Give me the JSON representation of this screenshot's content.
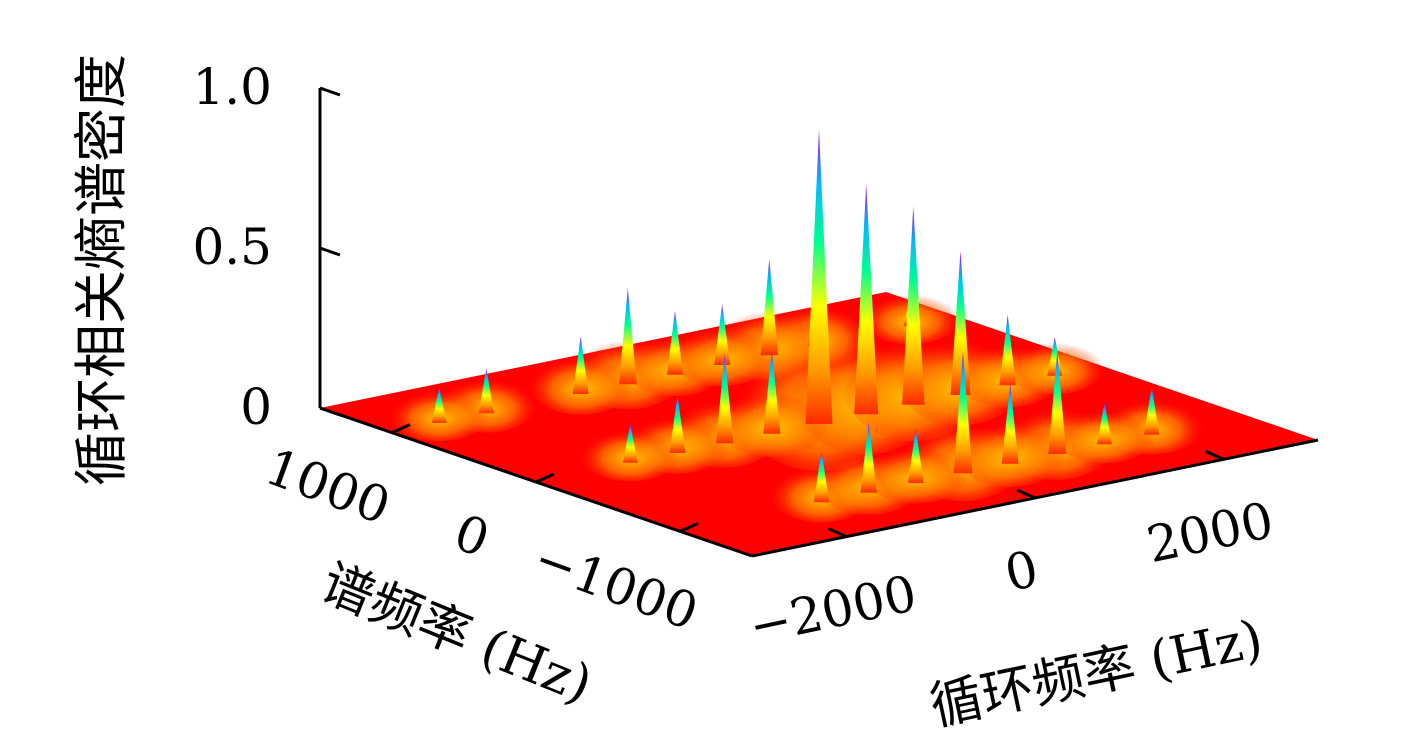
{
  "chart_data": {
    "type": "surface3d",
    "title": "",
    "zlabel": "循环相关熵谱密度",
    "xlabel": "循环频率 (Hz)",
    "ylabel": "谱频率 (Hz)",
    "zlim": [
      0,
      1.0
    ],
    "z_ticks": [
      "0",
      "0.5",
      "1.0"
    ],
    "z_tick_values": [
      0,
      0.5,
      1.0
    ],
    "x_ticks": [
      "−2000",
      "0",
      "2000"
    ],
    "x_tick_values": [
      -2000,
      0,
      2000
    ],
    "xlim": [
      -3000,
      3000
    ],
    "y_ticks": [
      "1000",
      "0",
      "−1000"
    ],
    "y_tick_values": [
      1000,
      0,
      -1000
    ],
    "ylim": [
      -1500,
      1500
    ],
    "colormap": [
      "#ff0000",
      "#ff8c00",
      "#ffff00",
      "#00ff80",
      "#00c0ff",
      "#a000ff"
    ],
    "baseline_color": "#ff0000",
    "peaks": [
      {
        "x": 0,
        "y": 0,
        "z": 0.92
      },
      {
        "x": 500,
        "y": 0,
        "z": 0.72
      },
      {
        "x": 0,
        "y": -1000,
        "z": 0.38
      },
      {
        "x": -500,
        "y": 1000,
        "z": 0.3
      },
      {
        "x": 1000,
        "y": 0,
        "z": 0.62
      },
      {
        "x": 1500,
        "y": 0,
        "z": 0.45
      },
      {
        "x": 1000,
        "y": -1000,
        "z": 0.32
      },
      {
        "x": -1000,
        "y": 0,
        "z": 0.28
      },
      {
        "x": 2000,
        "y": 0,
        "z": 0.22
      },
      {
        "x": -1500,
        "y": 0,
        "z": 0.18
      },
      {
        "x": 500,
        "y": -1000,
        "z": 0.25
      },
      {
        "x": -500,
        "y": 0,
        "z": 0.26
      },
      {
        "x": 2000,
        "y": -1000,
        "z": 0.15
      },
      {
        "x": -2000,
        "y": 1000,
        "z": 0.14
      },
      {
        "x": 1500,
        "y": 1000,
        "z": 0.22
      },
      {
        "x": 0,
        "y": 1000,
        "z": 0.2
      },
      {
        "x": 1000,
        "y": 1000,
        "z": 0.3
      },
      {
        "x": -1000,
        "y": 1000,
        "z": 0.18
      },
      {
        "x": -1500,
        "y": -1000,
        "z": 0.16
      },
      {
        "x": -1000,
        "y": -1000,
        "z": 0.22
      },
      {
        "x": 2500,
        "y": 0,
        "z": 0.12
      },
      {
        "x": -2500,
        "y": 1000,
        "z": 0.11
      },
      {
        "x": 500,
        "y": 1000,
        "z": 0.19
      },
      {
        "x": 2500,
        "y": 1000,
        "z": 0.1
      },
      {
        "x": -500,
        "y": -1000,
        "z": 0.17
      },
      {
        "x": 1500,
        "y": -1000,
        "z": 0.13
      },
      {
        "x": -2000,
        "y": 0,
        "z": 0.12
      }
    ]
  }
}
